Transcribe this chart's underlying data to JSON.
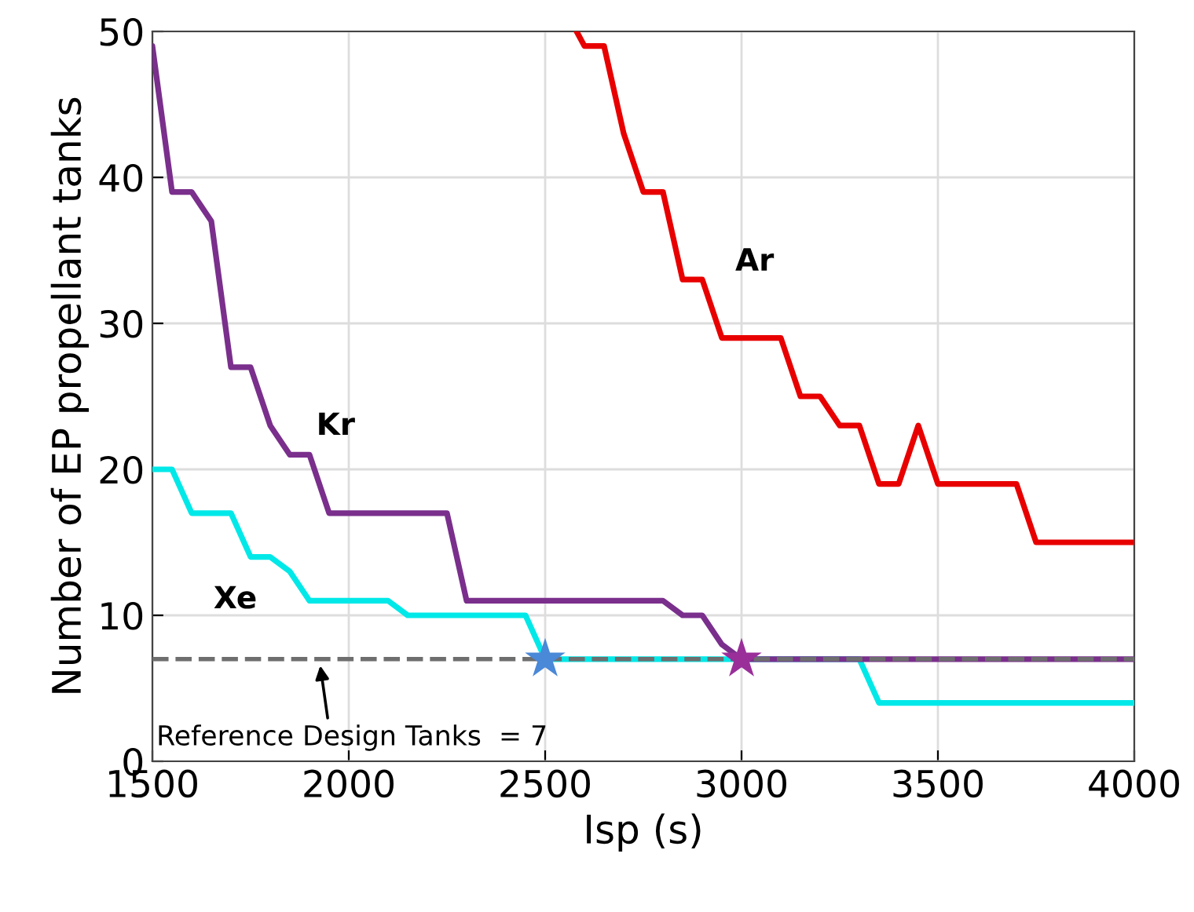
{
  "chart_data": {
    "type": "line",
    "xlabel": "Isp (s)",
    "ylabel": "Number of EP propellant tanks",
    "xlim": [
      1500,
      4000
    ],
    "xticks": [
      1500,
      2000,
      2500,
      3000,
      3500,
      4000
    ],
    "ylim": [
      0,
      50
    ],
    "yticks": [
      0,
      10,
      20,
      30,
      40,
      50
    ],
    "grid": true,
    "line_style": "solid",
    "series": [
      {
        "name": "Xe",
        "color": "#00e8e8",
        "x": [
          1500,
          1550,
          1600,
          1700,
          1750,
          1800,
          1850,
          1900,
          2100,
          2150,
          2450,
          2500,
          3300,
          3350,
          4000
        ],
        "values": [
          20,
          20,
          17,
          17,
          14,
          14,
          13,
          11,
          11,
          10,
          10,
          7,
          7,
          4,
          4
        ]
      },
      {
        "name": "Kr",
        "color": "#7a2f8c",
        "x": [
          1500,
          1550,
          1600,
          1650,
          1700,
          1750,
          1800,
          1850,
          1900,
          1950,
          2250,
          2300,
          2800,
          2850,
          2900,
          2950,
          3000,
          4000
        ],
        "values": [
          49,
          39,
          39,
          37,
          27,
          27,
          23,
          21,
          21,
          17,
          17,
          11,
          11,
          10,
          10,
          8,
          7,
          7
        ]
      },
      {
        "name": "Ar",
        "color": "#e80000",
        "x": [
          2580,
          2600,
          2650,
          2700,
          2750,
          2800,
          2850,
          2900,
          2950,
          3100,
          3150,
          3200,
          3250,
          3300,
          3350,
          3400,
          3450,
          3500,
          3700,
          3750,
          4000
        ],
        "values": [
          50,
          49,
          49,
          43,
          39,
          39,
          33,
          33,
          29,
          29,
          25,
          25,
          23,
          23,
          19,
          19,
          23,
          19,
          19,
          15,
          15
        ]
      },
      {
        "type": "scatter",
        "marker": "star",
        "x": [
          2500,
          3000
        ],
        "values": [
          7,
          7
        ],
        "colors": [
          "#4a88d8",
          "#9a2f9a"
        ]
      }
    ],
    "ref_lines": [
      {
        "axis": "y",
        "value": 7,
        "color": "#6e6e6e",
        "line_style": "dashed"
      }
    ],
    "annotations": [
      {
        "text": "Reference Design Tanks  = 7",
        "x": 1925,
        "y": 7
      }
    ]
  }
}
